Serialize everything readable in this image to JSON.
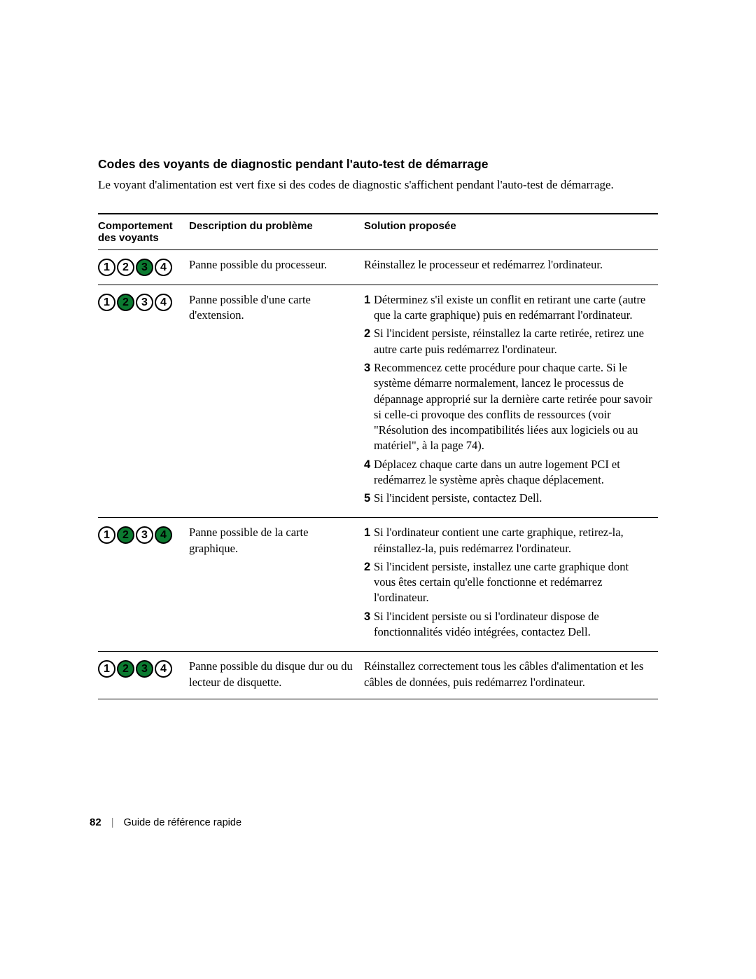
{
  "heading": "Codes des voyants de diagnostic pendant l'auto-test de démarrage",
  "intro": "Le voyant d'alimentation est vert fixe si des codes de diagnostic s'affichent pendant l'auto-test de démarrage.",
  "columns": {
    "lights": "Comportement des voyants",
    "desc": "Description du problème",
    "sol": "Solution proposée"
  },
  "led_on_color": "#0b7a30",
  "led_off_color": "#ffffff",
  "rows": [
    {
      "pattern": [
        false,
        false,
        true,
        false
      ],
      "description": "Panne possible du processeur.",
      "solution_plain": "Réinstallez le processeur et redémarrez l'ordinateur."
    },
    {
      "pattern": [
        false,
        true,
        false,
        false
      ],
      "description": "Panne possible d'une carte d'extension.",
      "solution_list": [
        "Déterminez s'il existe un conflit en retirant une carte (autre que la carte graphique) puis en redémarrant l'ordinateur.",
        "Si l'incident persiste, réinstallez la carte retirée, retirez une autre carte puis redémarrez l'ordinateur.",
        "Recommencez cette procédure pour chaque carte. Si le système démarre normalement, lancez le processus de dépannage approprié sur la dernière carte retirée pour savoir si celle-ci provoque des conflits de ressources (voir \"Résolution des incompatibilités liées aux logiciels ou au matériel\", à la page 74).",
        "Déplacez chaque carte dans un autre logement PCI et redémarrez le système après chaque déplacement.",
        "Si l'incident persiste, contactez Dell."
      ]
    },
    {
      "pattern": [
        false,
        true,
        false,
        true
      ],
      "description": "Panne possible de la carte graphique.",
      "solution_list": [
        "Si l'ordinateur contient une carte graphique, retirez-la, réinstallez-la, puis redémarrez l'ordinateur.",
        "Si l'incident persiste, installez une carte graphique dont vous êtes certain qu'elle fonctionne et redémarrez l'ordinateur.",
        "Si l'incident persiste ou si l'ordinateur dispose de fonctionnalités vidéo intégrées, contactez Dell."
      ]
    },
    {
      "pattern": [
        false,
        true,
        true,
        false
      ],
      "description": "Panne possible du disque dur ou du lecteur de disquette.",
      "solution_plain": "Réinstallez correctement tous les câbles d'alimentation et les câbles de données, puis redémarrez l'ordinateur."
    }
  ],
  "footer": {
    "page_number": "82",
    "doc_title": "Guide de référence rapide"
  }
}
